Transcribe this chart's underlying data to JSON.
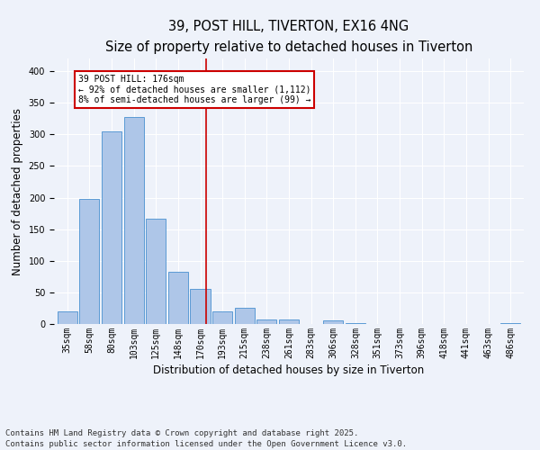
{
  "title1": "39, POST HILL, TIVERTON, EX16 4NG",
  "title2": "Size of property relative to detached houses in Tiverton",
  "xlabel": "Distribution of detached houses by size in Tiverton",
  "ylabel": "Number of detached properties",
  "bins": [
    "35sqm",
    "58sqm",
    "80sqm",
    "103sqm",
    "125sqm",
    "148sqm",
    "170sqm",
    "193sqm",
    "215sqm",
    "238sqm",
    "261sqm",
    "283sqm",
    "306sqm",
    "328sqm",
    "351sqm",
    "373sqm",
    "396sqm",
    "418sqm",
    "441sqm",
    "463sqm",
    "486sqm"
  ],
  "values": [
    20,
    198,
    305,
    328,
    167,
    82,
    55,
    20,
    25,
    7,
    7,
    0,
    5,
    2,
    0,
    0,
    0,
    0,
    0,
    0,
    2
  ],
  "bar_color": "#aec6e8",
  "bar_edge_color": "#5b9bd5",
  "vline_color": "#cc0000",
  "annotation_text": "39 POST HILL: 176sqm\n← 92% of detached houses are smaller (1,112)\n8% of semi-detached houses are larger (99) →",
  "annotation_box_color": "#ffffff",
  "annotation_box_edge_color": "#cc0000",
  "ylim": [
    0,
    420
  ],
  "background_color": "#eef2fa",
  "plot_background": "#eef2fa",
  "grid_color": "#ffffff",
  "footer": "Contains HM Land Registry data © Crown copyright and database right 2025.\nContains public sector information licensed under the Open Government Licence v3.0.",
  "title_fontsize": 10.5,
  "subtitle_fontsize": 9.5,
  "axis_label_fontsize": 8.5,
  "tick_fontsize": 7,
  "footer_fontsize": 6.5
}
